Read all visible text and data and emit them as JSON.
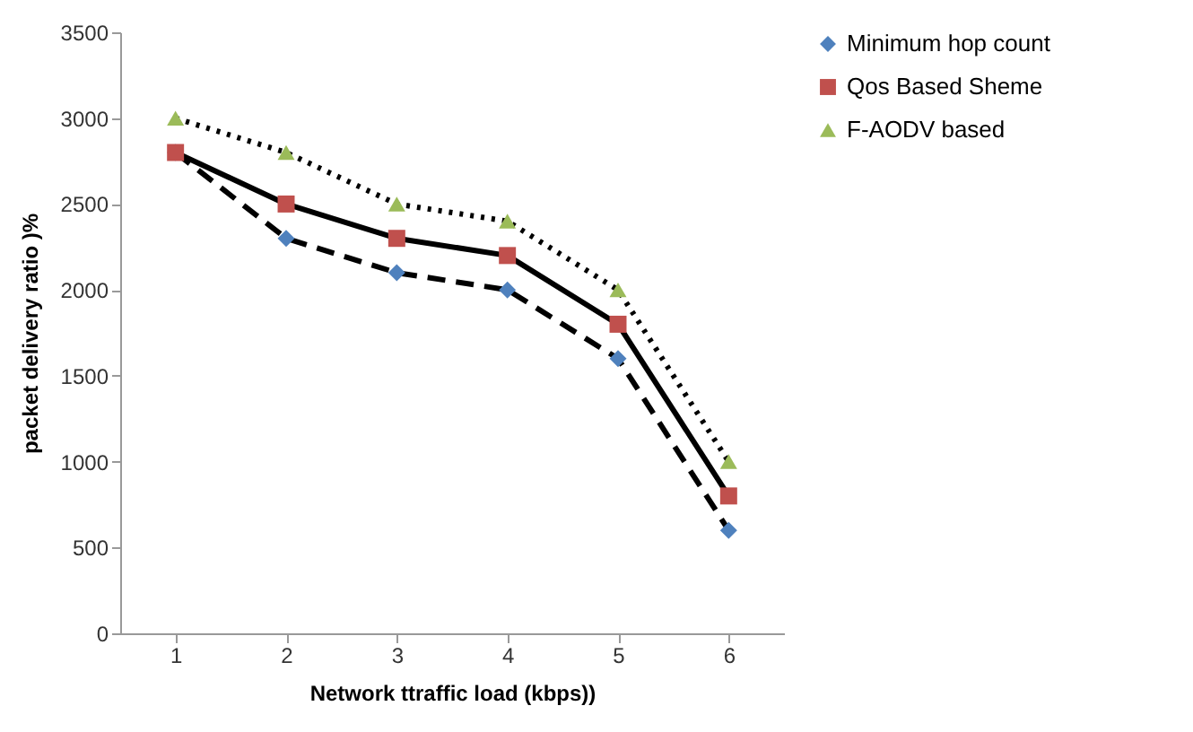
{
  "chart_data": {
    "type": "line",
    "xlabel": "Network ttraffic load (kbps))",
    "ylabel": "packet delivery ratio )%",
    "categories": [
      "1",
      "2",
      "3",
      "4",
      "5",
      "6"
    ],
    "series": [
      {
        "name": "Minimum hop count",
        "color": "#4f81bd",
        "marker": "diamond",
        "line_style": "dashed",
        "values": [
          2800,
          2300,
          2100,
          2000,
          1600,
          600
        ]
      },
      {
        "name": "Qos Based Sheme",
        "color": "#c0504d",
        "marker": "square",
        "line_style": "solid",
        "values": [
          2800,
          2500,
          2300,
          2200,
          1800,
          800
        ]
      },
      {
        "name": "F-AODV based",
        "color": "#9bbb59",
        "marker": "triangle",
        "line_style": "dotted",
        "values": [
          3000,
          2800,
          2500,
          2400,
          2000,
          1000
        ]
      }
    ],
    "ylim": [
      0,
      3500
    ],
    "yticks": [
      0,
      500,
      1000,
      1500,
      2000,
      2500,
      3000,
      3500
    ],
    "grid": false,
    "legend": "right"
  }
}
